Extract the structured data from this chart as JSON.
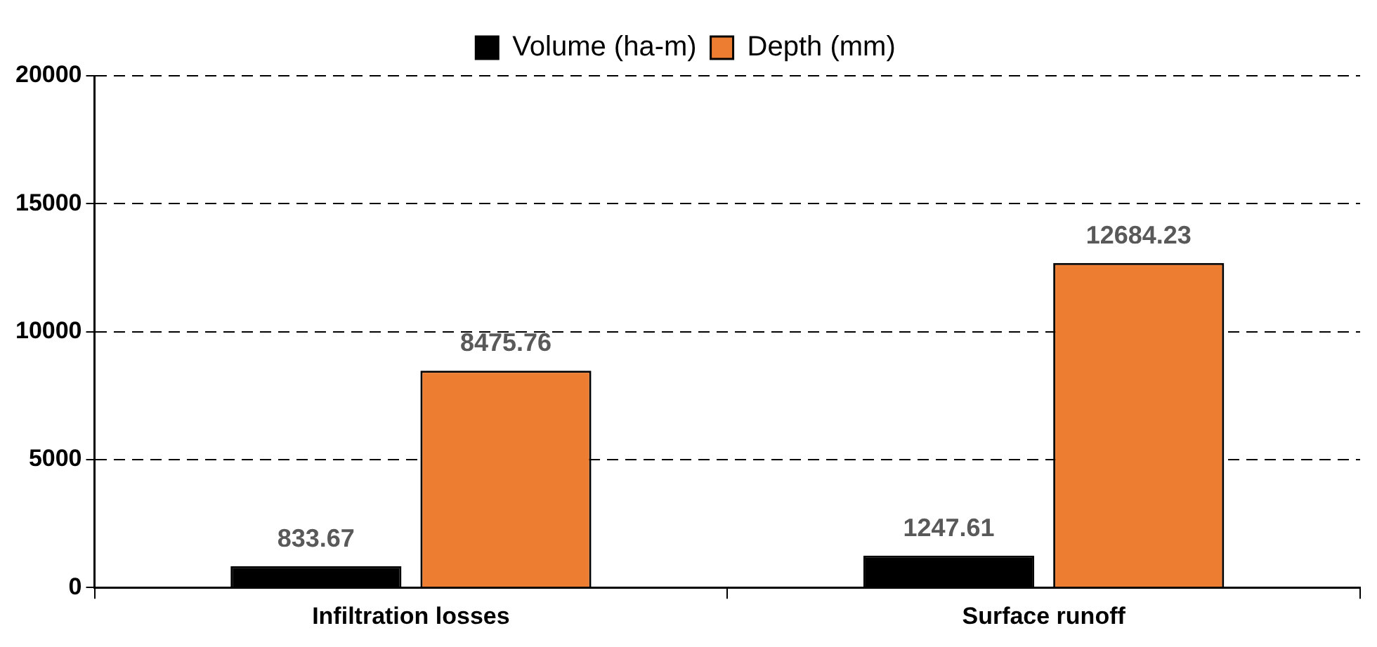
{
  "chart_data": {
    "type": "bar",
    "categories": [
      "Infiltration losses",
      "Surface runoff"
    ],
    "series": [
      {
        "name": "Volume (ha-m)",
        "color": "#000000",
        "values": [
          833.67,
          1247.61
        ]
      },
      {
        "name": "Depth (mm)",
        "color": "#ed7d31",
        "values": [
          8475.76,
          12684.23
        ]
      }
    ],
    "ylim": [
      0,
      20000
    ],
    "yticks": [
      0,
      5000,
      10000,
      15000,
      20000
    ],
    "grid": "y",
    "line_style": "dashed",
    "legend": "top",
    "data_labels": true
  }
}
